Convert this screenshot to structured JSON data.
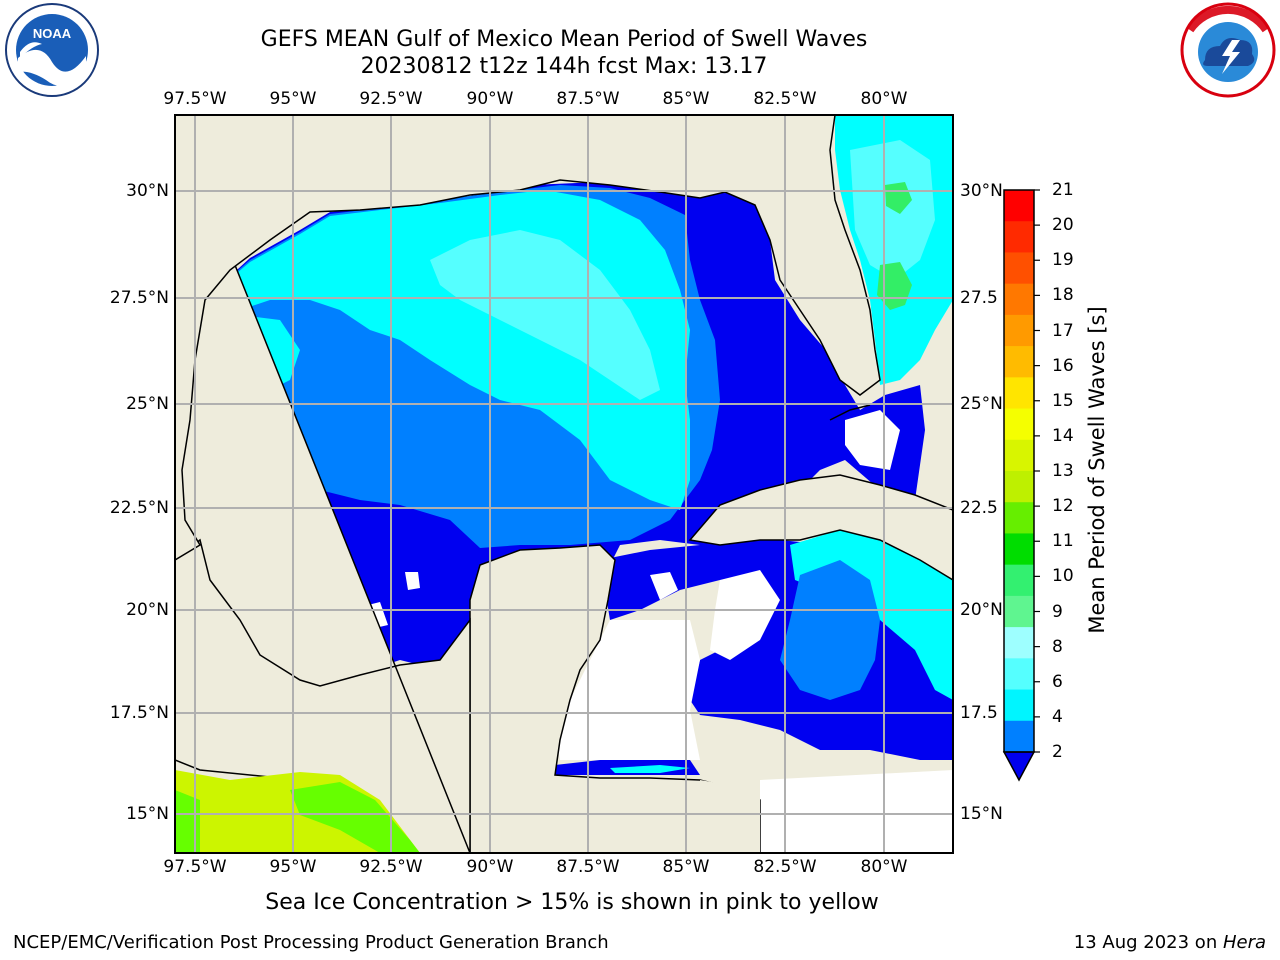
{
  "title_line1": "GEFS MEAN Gulf of Mexico Mean Period of Swell Waves",
  "title_line2": "20230812 t12z 144h fcst   Max: 13.17",
  "note": "Sea Ice Concentration > 15% is shown in pink to yellow",
  "footer_left": "NCEP/EMC/Verification Post Processing Product Generation Branch",
  "footer_date": "13 Aug 2023 on ",
  "footer_host": "Hera",
  "colorbar_label": "Mean Period of Swell Waves [s]",
  "lon_ticks": [
    "97.5°W",
    "95°W",
    "92.5°W",
    "90°W",
    "87.5°W",
    "85°W",
    "82.5°W",
    "80°W"
  ],
  "lat_ticks_left": [
    "30°N",
    "27.5°N",
    "25°N",
    "22.5°N",
    "20°N",
    "17.5°N",
    "15°N"
  ],
  "lat_ticks_right": [
    "30°N",
    "27.5",
    "25°N",
    "22.5",
    "20°N",
    "17.5",
    "15°N"
  ],
  "colorbar_ticks": [
    "21",
    "20",
    "19",
    "18",
    "17",
    "16",
    "15",
    "14",
    "13",
    "12",
    "11",
    "10",
    "9",
    "8",
    "6",
    "4",
    "2"
  ],
  "colorbar_colors": [
    "#ff0000",
    "#ff2a00",
    "#ff5000",
    "#ff7800",
    "#ff9a00",
    "#ffbb00",
    "#ffe500",
    "#f5ff00",
    "#d8f500",
    "#bef000",
    "#66ee00",
    "#00dd00",
    "#33f070",
    "#5ff590",
    "#9effff",
    "#55ffff",
    "#00f5ff",
    "#0080ff"
  ],
  "colorbar_extend_color": "#0000ee",
  "map_colors": {
    "land": "#eeecdc",
    "deep_blue": "#0000f0",
    "mid_blue": "#0080ff",
    "cyan": "#00ffff",
    "light_cyan": "#55ffff",
    "green": "#33ee66",
    "yellow_green": "#ccf500",
    "bright_green": "#66ff00",
    "grid": "#b0b0b0"
  },
  "logos": {
    "noaa": "NOAA",
    "nws": "NATIONAL WEATHER SERVICE"
  }
}
